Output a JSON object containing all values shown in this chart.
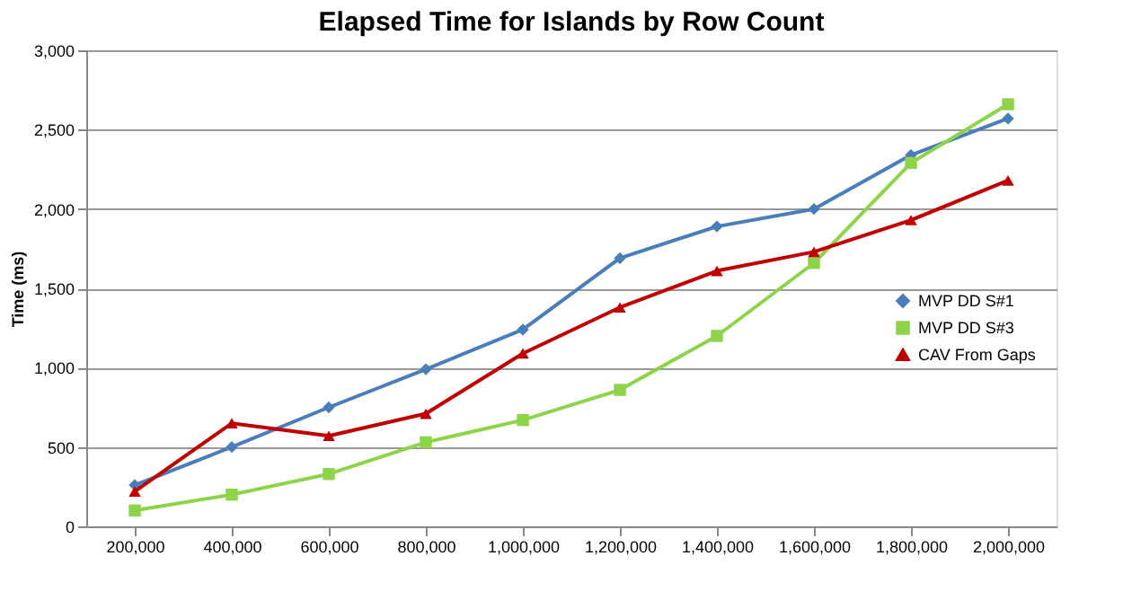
{
  "chart_data": {
    "type": "line",
    "title": "Elapsed Time for Islands by Row Count",
    "ylabel": "Time (ms)",
    "categories": [
      "200,000",
      "400,000",
      "600,000",
      "800,000",
      "1,000,000",
      "1,200,000",
      "1,400,000",
      "1,600,000",
      "1,800,000",
      "2,000,000"
    ],
    "series": [
      {
        "name": "MVP DD S#1",
        "color": "#4a7ebb",
        "marker": "diamond",
        "values": [
          260,
          500,
          750,
          990,
          1240,
          1690,
          1890,
          2000,
          2340,
          2570
        ]
      },
      {
        "name": "MVP DD S#3",
        "color": "#8ed44a",
        "marker": "square",
        "values": [
          100,
          200,
          330,
          530,
          670,
          860,
          1200,
          1660,
          2290,
          2660
        ]
      },
      {
        "name": "CAV From Gaps",
        "color": "#c00000",
        "marker": "triangle",
        "values": [
          220,
          650,
          570,
          710,
          1090,
          1380,
          1610,
          1730,
          1930,
          2180
        ]
      }
    ],
    "ylim": [
      0,
      3000
    ],
    "yticks": [
      0,
      {
        "value": 500,
        "label": "500"
      },
      {
        "value": 1000,
        "label": "1,000"
      },
      {
        "value": 1500,
        "label": "1,500"
      },
      {
        "value": 2000,
        "label": "2,000"
      },
      {
        "value": 2500,
        "label": "2,500"
      },
      {
        "value": 3000,
        "label": "3,000"
      }
    ],
    "grid": "y",
    "legend": "right"
  }
}
